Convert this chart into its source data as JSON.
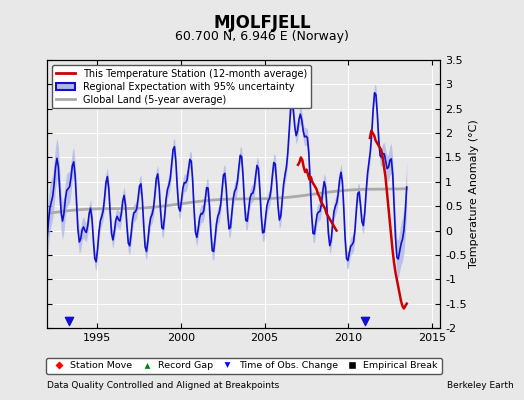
{
  "title": "MJOLFJELL",
  "subtitle": "60.700 N, 6.946 E (Norway)",
  "ylabel": "Temperature Anomaly (°C)",
  "xlabel_left": "Data Quality Controlled and Aligned at Breakpoints",
  "xlabel_right": "Berkeley Earth",
  "xlim": [
    1992.0,
    2015.5
  ],
  "ylim": [
    -2.0,
    3.5
  ],
  "yticks": [
    -2,
    -1.5,
    -1,
    -0.5,
    0,
    0.5,
    1,
    1.5,
    2,
    2.5,
    3,
    3.5
  ],
  "xticks": [
    1995,
    2000,
    2005,
    2010,
    2015
  ],
  "bg_color": "#e8e8e8",
  "plot_bg_color": "#e8e8e8",
  "grid_color": "#ffffff",
  "station_color": "#cc0000",
  "regional_color": "#1111cc",
  "regional_fill_color": "#b0b8e8",
  "global_color": "#aaaaaa",
  "legend_labels": [
    "This Temperature Station (12-month average)",
    "Regional Expectation with 95% uncertainty",
    "Global Land (5-year average)"
  ],
  "bottom_legend": [
    "Station Move",
    "Record Gap",
    "Time of Obs. Change",
    "Empirical Break"
  ]
}
